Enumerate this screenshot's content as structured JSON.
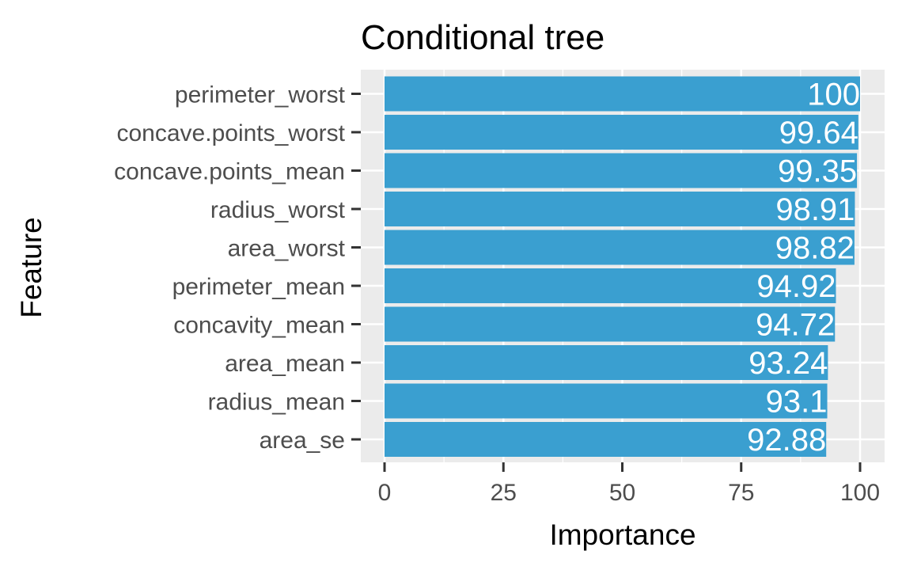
{
  "chart_data": {
    "type": "bar",
    "orientation": "horizontal",
    "title": "Conditional tree",
    "xlabel": "Importance",
    "ylabel": "Feature",
    "categories": [
      "perimeter_worst",
      "concave.points_worst",
      "concave.points_mean",
      "radius_worst",
      "area_worst",
      "perimeter_mean",
      "concavity_mean",
      "area_mean",
      "radius_mean",
      "area_se"
    ],
    "values": [
      100,
      99.64,
      99.35,
      98.91,
      98.82,
      94.92,
      94.72,
      93.24,
      93.1,
      92.88
    ],
    "value_labels": [
      "100",
      "99.64",
      "99.35",
      "98.91",
      "98.82",
      "94.92",
      "94.72",
      "93.24",
      "93.1",
      "92.88"
    ],
    "xlim": [
      0,
      100
    ],
    "xticks": [
      0,
      25,
      50,
      75,
      100
    ],
    "xtick_labels": [
      "0",
      "25",
      "50",
      "75",
      "100"
    ],
    "grid": true,
    "legend": "none",
    "colors": {
      "bar": "#3a9fd0",
      "panel": "#ebebeb",
      "grid": "#ffffff",
      "bar_label": "#ffffff"
    }
  }
}
